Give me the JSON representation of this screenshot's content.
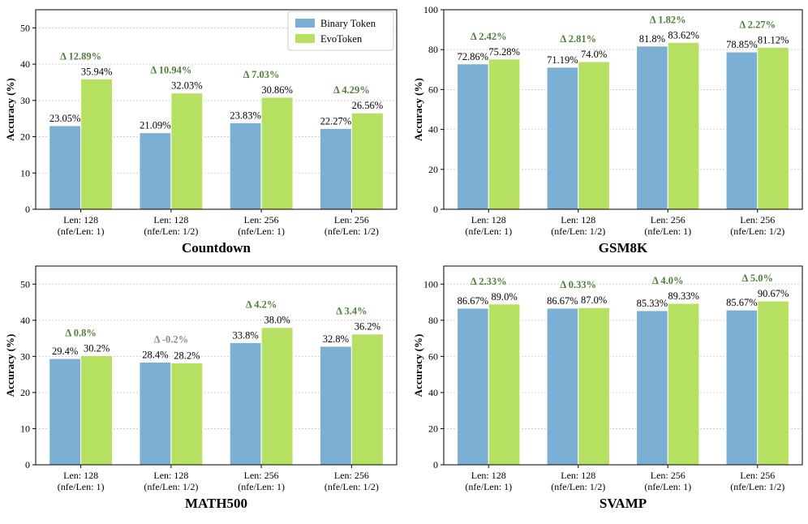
{
  "colors": {
    "binary": "#7bafd4",
    "evo": "#b5e061",
    "delta_pos": "#4f7f3a",
    "delta_neg": "#8c8c8c",
    "grid": "#c8c8c8"
  },
  "legend": {
    "entries": [
      "Binary Token",
      "EvoToken"
    ]
  },
  "chart_data": [
    {
      "type": "bar",
      "title": "Countdown",
      "ylabel": "Accuracy (%)",
      "ylim": [
        0,
        55
      ],
      "yticks": [
        0,
        10,
        20,
        30,
        40,
        50
      ],
      "categories": [
        [
          "Len: 128",
          "(nfe/Len: 1)"
        ],
        [
          "Len: 128",
          "(nfe/Len: 1/2)"
        ],
        [
          "Len: 256",
          "(nfe/Len: 1)"
        ],
        [
          "Len: 256",
          "(nfe/Len: 1/2)"
        ]
      ],
      "series": [
        {
          "name": "Binary Token",
          "values": [
            23.05,
            21.09,
            23.83,
            22.27
          ],
          "labels": [
            "23.05%",
            "21.09%",
            "23.83%",
            "22.27%"
          ]
        },
        {
          "name": "EvoToken",
          "values": [
            35.94,
            32.03,
            30.86,
            26.56
          ],
          "labels": [
            "35.94%",
            "32.03%",
            "30.86%",
            "26.56%"
          ]
        }
      ],
      "deltas": [
        "Δ 12.89%",
        "Δ 10.94%",
        "Δ 7.03%",
        "Δ 4.29%"
      ],
      "delta_negative": [
        false,
        false,
        false,
        false
      ],
      "legend": "top-right",
      "grid": true
    },
    {
      "type": "bar",
      "title": "GSM8K",
      "ylabel": "Accuracy (%)",
      "ylim": [
        0,
        100
      ],
      "yticks": [
        0,
        20,
        40,
        60,
        80,
        100
      ],
      "categories": [
        [
          "Len: 128",
          "(nfe/Len: 1)"
        ],
        [
          "Len: 128",
          "(nfe/Len: 1/2)"
        ],
        [
          "Len: 256",
          "(nfe/Len: 1)"
        ],
        [
          "Len: 256",
          "(nfe/Len: 1/2)"
        ]
      ],
      "series": [
        {
          "name": "Binary Token",
          "values": [
            72.86,
            71.19,
            81.8,
            78.85
          ],
          "labels": [
            "72.86%",
            "71.19%",
            "81.8%",
            "78.85%"
          ]
        },
        {
          "name": "EvoToken",
          "values": [
            75.28,
            74.0,
            83.62,
            81.12
          ],
          "labels": [
            "75.28%",
            "74.0%",
            "83.62%",
            "81.12%"
          ]
        }
      ],
      "deltas": [
        "Δ 2.42%",
        "Δ 2.81%",
        "Δ 1.82%",
        "Δ 2.27%"
      ],
      "delta_negative": [
        false,
        false,
        false,
        false
      ],
      "grid": true
    },
    {
      "type": "bar",
      "title": "MATH500",
      "ylabel": "Accuracy (%)",
      "ylim": [
        0,
        55
      ],
      "yticks": [
        0,
        10,
        20,
        30,
        40,
        50
      ],
      "categories": [
        [
          "Len: 128",
          "(nfe/Len: 1)"
        ],
        [
          "Len: 128",
          "(nfe/Len: 1/2)"
        ],
        [
          "Len: 256",
          "(nfe/Len: 1)"
        ],
        [
          "Len: 256",
          "(nfe/Len: 1/2)"
        ]
      ],
      "series": [
        {
          "name": "Binary Token",
          "values": [
            29.4,
            28.4,
            33.8,
            32.8
          ],
          "labels": [
            "29.4%",
            "28.4%",
            "33.8%",
            "32.8%"
          ]
        },
        {
          "name": "EvoToken",
          "values": [
            30.2,
            28.2,
            38.0,
            36.2
          ],
          "labels": [
            "30.2%",
            "28.2%",
            "38.0%",
            "36.2%"
          ]
        }
      ],
      "deltas": [
        "Δ 0.8%",
        "Δ -0.2%",
        "Δ 4.2%",
        "Δ 3.4%"
      ],
      "delta_negative": [
        false,
        true,
        false,
        false
      ],
      "grid": true
    },
    {
      "type": "bar",
      "title": "SVAMP",
      "ylabel": "Accuracy (%)",
      "ylim": [
        0,
        110
      ],
      "yticks": [
        0,
        20,
        40,
        60,
        80,
        100
      ],
      "categories": [
        [
          "Len: 128",
          "(nfe/Len: 1)"
        ],
        [
          "Len: 128",
          "(nfe/Len: 1/2)"
        ],
        [
          "Len: 256",
          "(nfe/Len: 1)"
        ],
        [
          "Len: 256",
          "(nfe/Len: 1/2)"
        ]
      ],
      "series": [
        {
          "name": "Binary Token",
          "values": [
            86.67,
            86.67,
            85.33,
            85.67
          ],
          "labels": [
            "86.67%",
            "86.67%",
            "85.33%",
            "85.67%"
          ]
        },
        {
          "name": "EvoToken",
          "values": [
            89.0,
            87.0,
            89.33,
            90.67
          ],
          "labels": [
            "89.0%",
            "87.0%",
            "89.33%",
            "90.67%"
          ]
        }
      ],
      "deltas": [
        "Δ 2.33%",
        "Δ 0.33%",
        "Δ 4.0%",
        "Δ 5.0%"
      ],
      "delta_negative": [
        false,
        false,
        false,
        false
      ],
      "grid": true
    }
  ]
}
